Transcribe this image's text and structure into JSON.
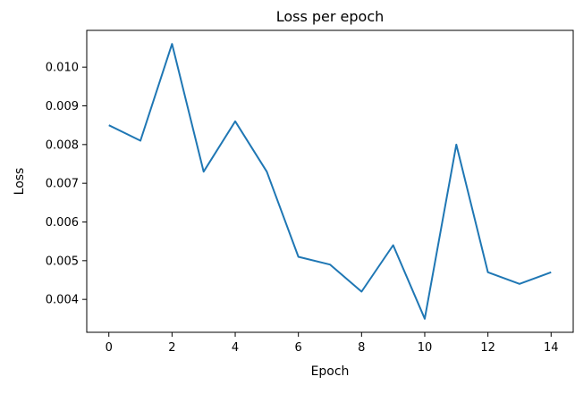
{
  "chart_data": {
    "type": "line",
    "title": "Loss per epoch",
    "xlabel": "Epoch",
    "ylabel": "Loss",
    "xlim": [
      -0.7,
      14.7
    ],
    "ylim": [
      0.00315,
      0.01095
    ],
    "xticks": [
      0,
      2,
      4,
      6,
      8,
      10,
      12,
      14
    ],
    "xtick_labels": [
      "0",
      "2",
      "4",
      "6",
      "8",
      "10",
      "12",
      "14"
    ],
    "yticks": [
      0.004,
      0.005,
      0.006,
      0.007,
      0.008,
      0.009,
      0.01
    ],
    "ytick_labels": [
      "0.004",
      "0.005",
      "0.006",
      "0.007",
      "0.008",
      "0.009",
      "0.010"
    ],
    "grid": false,
    "series": [
      {
        "color": "#1f77b4",
        "x": [
          0,
          1,
          2,
          3,
          4,
          5,
          6,
          7,
          8,
          9,
          10,
          11,
          12,
          13,
          14
        ],
        "y": [
          0.0085,
          0.0081,
          0.0106,
          0.0073,
          0.0086,
          0.0073,
          0.0051,
          0.0049,
          0.0042,
          0.0054,
          0.0035,
          0.008,
          0.0047,
          0.0044,
          0.0047
        ]
      }
    ]
  }
}
